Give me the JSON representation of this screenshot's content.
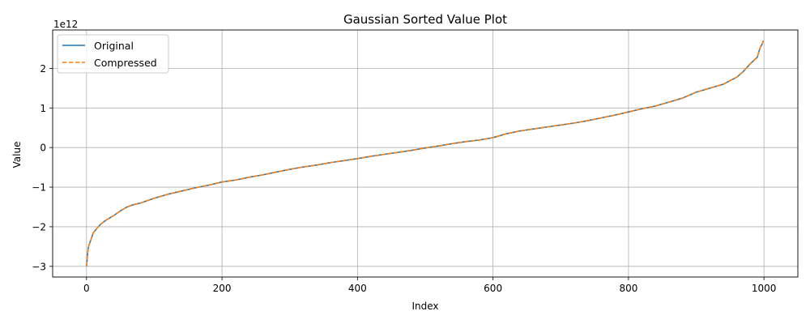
{
  "chart_data": {
    "type": "line",
    "title": "Gaussian Sorted Value Plot",
    "xlabel": "Index",
    "ylabel": "Value",
    "offset_label": "1e12",
    "xlim": [
      -50,
      1050
    ],
    "ylim": [
      -3270000000000.0,
      2970000000000.0
    ],
    "x_ticks": [
      0,
      200,
      400,
      600,
      800,
      1000
    ],
    "x_tick_labels": [
      "0",
      "200",
      "400",
      "600",
      "800",
      "1000"
    ],
    "y_ticks": [
      -3000000000000.0,
      -2000000000000.0,
      -1000000000000.0,
      0,
      1000000000000.0,
      2000000000000.0
    ],
    "y_tick_labels": [
      "−3",
      "−2",
      "−1",
      "0",
      "1",
      "2"
    ],
    "grid": true,
    "legend_position": "upper-left",
    "series": [
      {
        "name": "Original",
        "color": "#1f77b4",
        "style": "solid",
        "x": [
          0,
          1,
          2,
          3,
          5,
          7,
          10,
          15,
          20,
          25,
          30,
          40,
          50,
          60,
          70,
          80,
          90,
          100,
          120,
          140,
          160,
          180,
          200,
          220,
          240,
          260,
          280,
          300,
          320,
          340,
          360,
          380,
          400,
          420,
          440,
          460,
          480,
          500,
          520,
          540,
          560,
          580,
          600,
          620,
          640,
          660,
          680,
          700,
          720,
          740,
          760,
          780,
          800,
          820,
          840,
          860,
          880,
          900,
          920,
          940,
          960,
          970,
          980,
          985,
          990,
          993,
          995,
          997,
          998,
          999
        ],
        "y": [
          -3000000000000.0,
          -2800000000000.0,
          -2600000000000.0,
          -2500000000000.0,
          -2400000000000.0,
          -2300000000000.0,
          -2150000000000.0,
          -2050000000000.0,
          -1950000000000.0,
          -1880000000000.0,
          -1820000000000.0,
          -1720000000000.0,
          -1600000000000.0,
          -1500000000000.0,
          -1440000000000.0,
          -1400000000000.0,
          -1340000000000.0,
          -1280000000000.0,
          -1180000000000.0,
          -1100000000000.0,
          -1020000000000.0,
          -950000000000.0,
          -870000000000.0,
          -820000000000.0,
          -750000000000.0,
          -690000000000.0,
          -620000000000.0,
          -550000000000.0,
          -490000000000.0,
          -440000000000.0,
          -380000000000.0,
          -330000000000.0,
          -280000000000.0,
          -220000000000.0,
          -170000000000.0,
          -120000000000.0,
          -70000000000.0,
          -10000000000.0,
          40000000000.0,
          100000000000.0,
          150000000000.0,
          190000000000.0,
          250000000000.0,
          350000000000.0,
          420000000000.0,
          470000000000.0,
          520000000000.0,
          570000000000.0,
          620000000000.0,
          680000000000.0,
          750000000000.0,
          820000000000.0,
          900000000000.0,
          980000000000.0,
          1050000000000.0,
          1150000000000.0,
          1250000000000.0,
          1400000000000.0,
          1500000000000.0,
          1600000000000.0,
          1780000000000.0,
          1930000000000.0,
          2120000000000.0,
          2200000000000.0,
          2280000000000.0,
          2450000000000.0,
          2550000000000.0,
          2600000000000.0,
          2650000000000.0,
          2700000000000.0
        ]
      },
      {
        "name": "Compressed",
        "color": "#ff7f0e",
        "style": "dashed",
        "x": [
          0,
          1,
          2,
          3,
          5,
          7,
          10,
          15,
          20,
          25,
          30,
          40,
          50,
          60,
          70,
          80,
          90,
          100,
          120,
          140,
          160,
          180,
          200,
          220,
          240,
          260,
          280,
          300,
          320,
          340,
          360,
          380,
          400,
          420,
          440,
          460,
          480,
          500,
          520,
          540,
          560,
          580,
          600,
          620,
          640,
          660,
          680,
          700,
          720,
          740,
          760,
          780,
          800,
          820,
          840,
          860,
          880,
          900,
          920,
          940,
          960,
          970,
          980,
          985,
          990,
          993,
          995,
          997,
          998,
          999
        ],
        "y": [
          -3000000000000.0,
          -2800000000000.0,
          -2600000000000.0,
          -2500000000000.0,
          -2400000000000.0,
          -2300000000000.0,
          -2150000000000.0,
          -2050000000000.0,
          -1950000000000.0,
          -1880000000000.0,
          -1820000000000.0,
          -1720000000000.0,
          -1600000000000.0,
          -1500000000000.0,
          -1440000000000.0,
          -1400000000000.0,
          -1340000000000.0,
          -1280000000000.0,
          -1180000000000.0,
          -1100000000000.0,
          -1020000000000.0,
          -950000000000.0,
          -870000000000.0,
          -820000000000.0,
          -750000000000.0,
          -690000000000.0,
          -620000000000.0,
          -550000000000.0,
          -490000000000.0,
          -440000000000.0,
          -380000000000.0,
          -330000000000.0,
          -280000000000.0,
          -220000000000.0,
          -170000000000.0,
          -120000000000.0,
          -70000000000.0,
          -10000000000.0,
          40000000000.0,
          100000000000.0,
          150000000000.0,
          190000000000.0,
          250000000000.0,
          350000000000.0,
          420000000000.0,
          470000000000.0,
          520000000000.0,
          570000000000.0,
          620000000000.0,
          680000000000.0,
          750000000000.0,
          820000000000.0,
          900000000000.0,
          980000000000.0,
          1050000000000.0,
          1150000000000.0,
          1250000000000.0,
          1400000000000.0,
          1500000000000.0,
          1600000000000.0,
          1780000000000.0,
          1930000000000.0,
          2120000000000.0,
          2200000000000.0,
          2280000000000.0,
          2450000000000.0,
          2550000000000.0,
          2600000000000.0,
          2650000000000.0,
          2700000000000.0
        ]
      }
    ]
  }
}
